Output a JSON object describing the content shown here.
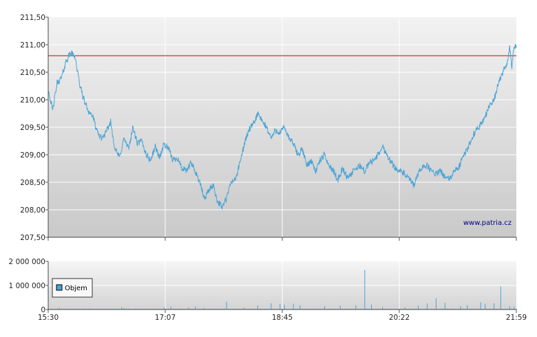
{
  "chart_data": [
    {
      "type": "line",
      "name": "price-chart",
      "x_ticks": [
        "15:30",
        "17:07",
        "18:45",
        "20:22",
        "21:59"
      ],
      "y_ticks": [
        "211,50",
        "211,00",
        "210,50",
        "210,00",
        "209,50",
        "209,00",
        "208,50",
        "208,00",
        "207,50"
      ],
      "ylim": [
        207.5,
        211.5
      ],
      "reference_line": 210.8,
      "grid": true,
      "watermark": "www.patria.cz",
      "colors": {
        "line": "#4aa3d6",
        "reference": "#cc0000",
        "bg_top": "#f2f2f2",
        "bg_bottom": "#c9c9c9",
        "grid": "#ffffff"
      },
      "series_keypoints": [
        [
          0,
          210.2
        ],
        [
          2,
          209.8
        ],
        [
          4,
          210.3
        ],
        [
          6,
          210.4
        ],
        [
          8,
          210.7
        ],
        [
          10,
          210.85
        ],
        [
          12,
          210.8
        ],
        [
          14,
          210.3
        ],
        [
          16,
          210.0
        ],
        [
          18,
          209.8
        ],
        [
          20,
          209.7
        ],
        [
          22,
          209.4
        ],
        [
          24,
          209.3
        ],
        [
          26,
          209.4
        ],
        [
          28,
          209.6
        ],
        [
          30,
          209.1
        ],
        [
          32,
          208.95
        ],
        [
          34,
          209.3
        ],
        [
          36,
          209.1
        ],
        [
          38,
          209.5
        ],
        [
          40,
          209.2
        ],
        [
          42,
          209.25
        ],
        [
          44,
          209.0
        ],
        [
          46,
          208.9
        ],
        [
          48,
          209.15
        ],
        [
          50,
          208.95
        ],
        [
          52,
          209.2
        ],
        [
          54,
          209.1
        ],
        [
          56,
          208.9
        ],
        [
          58,
          208.95
        ],
        [
          60,
          208.75
        ],
        [
          62,
          208.7
        ],
        [
          64,
          208.85
        ],
        [
          66,
          208.7
        ],
        [
          68,
          208.5
        ],
        [
          70,
          208.2
        ],
        [
          72,
          208.35
        ],
        [
          74,
          208.45
        ],
        [
          76,
          208.15
        ],
        [
          78,
          208.05
        ],
        [
          80,
          208.2
        ],
        [
          82,
          208.5
        ],
        [
          84,
          208.55
        ],
        [
          86,
          208.85
        ],
        [
          88,
          209.2
        ],
        [
          90,
          209.45
        ],
        [
          92,
          209.55
        ],
        [
          94,
          209.75
        ],
        [
          96,
          209.6
        ],
        [
          98,
          209.5
        ],
        [
          100,
          209.3
        ],
        [
          102,
          209.45
        ],
        [
          104,
          209.4
        ],
        [
          106,
          209.5
        ],
        [
          108,
          209.3
        ],
        [
          110,
          209.2
        ],
        [
          112,
          209.0
        ],
        [
          114,
          209.1
        ],
        [
          116,
          208.8
        ],
        [
          118,
          208.9
        ],
        [
          120,
          208.7
        ],
        [
          122,
          208.9
        ],
        [
          124,
          209.0
        ],
        [
          126,
          208.8
        ],
        [
          128,
          208.7
        ],
        [
          130,
          208.55
        ],
        [
          132,
          208.75
        ],
        [
          134,
          208.6
        ],
        [
          136,
          208.65
        ],
        [
          138,
          208.75
        ],
        [
          140,
          208.8
        ],
        [
          142,
          208.7
        ],
        [
          144,
          208.85
        ],
        [
          146,
          208.9
        ],
        [
          148,
          209.0
        ],
        [
          150,
          209.15
        ],
        [
          152,
          209.0
        ],
        [
          154,
          208.85
        ],
        [
          156,
          208.75
        ],
        [
          158,
          208.7
        ],
        [
          160,
          208.65
        ],
        [
          162,
          208.55
        ],
        [
          164,
          208.45
        ],
        [
          166,
          208.65
        ],
        [
          168,
          208.8
        ],
        [
          170,
          208.8
        ],
        [
          172,
          208.7
        ],
        [
          174,
          208.65
        ],
        [
          176,
          208.7
        ],
        [
          178,
          208.6
        ],
        [
          180,
          208.55
        ],
        [
          182,
          208.7
        ],
        [
          184,
          208.75
        ],
        [
          186,
          208.95
        ],
        [
          188,
          209.1
        ],
        [
          190,
          209.3
        ],
        [
          192,
          209.45
        ],
        [
          194,
          209.55
        ],
        [
          196,
          209.7
        ],
        [
          198,
          209.9
        ],
        [
          200,
          210.0
        ],
        [
          202,
          210.3
        ],
        [
          204,
          210.5
        ],
        [
          206,
          210.7
        ],
        [
          207,
          210.95
        ],
        [
          208,
          210.6
        ],
        [
          209,
          211.0
        ],
        [
          210,
          210.95
        ]
      ]
    },
    {
      "type": "bar",
      "name": "volume-chart",
      "x_ticks": [
        "15:30",
        "17:07",
        "18:45",
        "20:22",
        "21:59"
      ],
      "y_ticks": [
        "2 000 000",
        "1 000 000",
        "0"
      ],
      "ylim": [
        0,
        2000000
      ],
      "legend": {
        "label": "Objem",
        "position": "left"
      },
      "colors": {
        "bar": "#4aa3d6",
        "legend_swatch": "#4aa3d6"
      },
      "spikes": [
        [
          5,
          70000
        ],
        [
          33,
          90000
        ],
        [
          34,
          60000
        ],
        [
          52,
          90000
        ],
        [
          55,
          120000
        ],
        [
          63,
          80000
        ],
        [
          66,
          130000
        ],
        [
          70,
          60000
        ],
        [
          80,
          320000
        ],
        [
          88,
          70000
        ],
        [
          94,
          170000
        ],
        [
          100,
          260000
        ],
        [
          104,
          230000
        ],
        [
          106,
          200000
        ],
        [
          110,
          240000
        ],
        [
          113,
          180000
        ],
        [
          124,
          140000
        ],
        [
          131,
          160000
        ],
        [
          138,
          180000
        ],
        [
          142,
          1640000
        ],
        [
          145,
          210000
        ],
        [
          150,
          100000
        ],
        [
          160,
          90000
        ],
        [
          166,
          160000
        ],
        [
          170,
          250000
        ],
        [
          174,
          470000
        ],
        [
          178,
          280000
        ],
        [
          185,
          140000
        ],
        [
          188,
          180000
        ],
        [
          194,
          300000
        ],
        [
          196,
          240000
        ],
        [
          200,
          260000
        ],
        [
          203,
          960000
        ],
        [
          207,
          130000
        ],
        [
          209,
          110000
        ]
      ]
    }
  ]
}
